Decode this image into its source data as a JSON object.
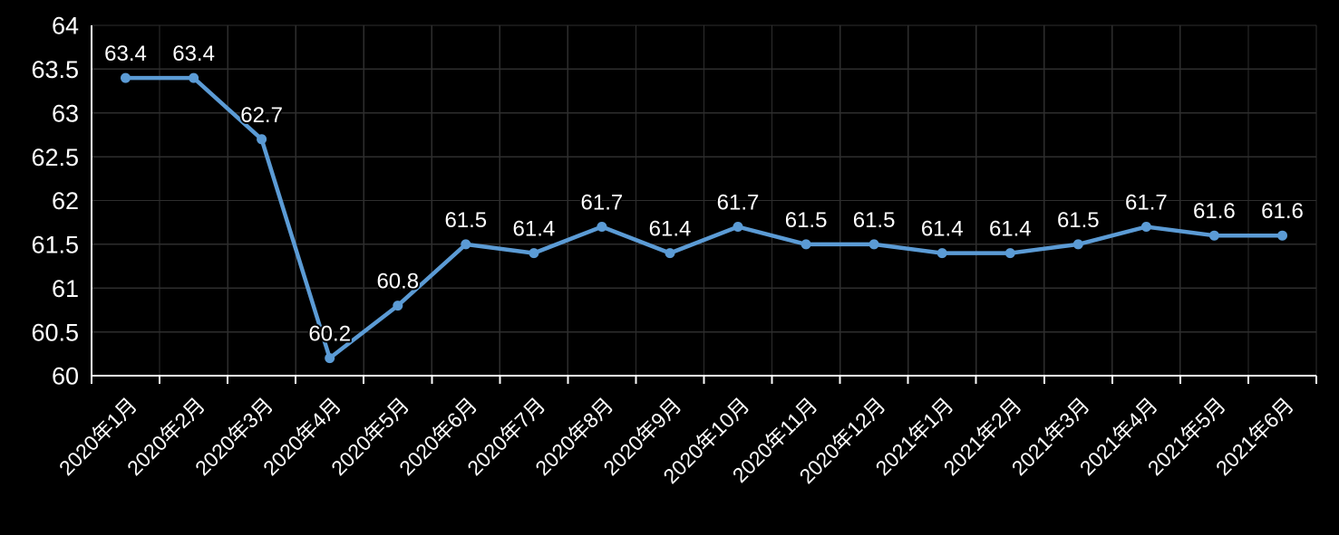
{
  "chart_data": {
    "type": "line",
    "title": "",
    "xlabel": "",
    "ylabel": "",
    "categories": [
      "2020年1月",
      "2020年2月",
      "2020年3月",
      "2020年4月",
      "2020年5月",
      "2020年6月",
      "2020年7月",
      "2020年8月",
      "2020年9月",
      "2020年10月",
      "2020年11月",
      "2020年12月",
      "2021年1月",
      "2021年2月",
      "2021年3月",
      "2021年4月",
      "2021年5月",
      "2021年6月"
    ],
    "series": [
      {
        "name": "series-1",
        "values": [
          63.4,
          63.4,
          62.7,
          60.2,
          60.8,
          61.5,
          61.4,
          61.7,
          61.4,
          61.7,
          61.5,
          61.5,
          61.4,
          61.4,
          61.5,
          61.7,
          61.6,
          61.6
        ],
        "data_labels": [
          "63.4",
          "63.4",
          "62.7",
          "60.2",
          "60.8",
          "61.5",
          "61.4",
          "61.7",
          "61.4",
          "61.7",
          "61.5",
          "61.5",
          "61.4",
          "61.4",
          "61.5",
          "61.7",
          "61.6",
          "61.6"
        ]
      }
    ],
    "ylim": [
      60,
      64
    ],
    "y_tick_step": 0.5,
    "y_tick_labels": [
      "64",
      "63.5",
      "63",
      "62.5",
      "62",
      "61.5",
      "61",
      "60.5",
      "60"
    ],
    "grid": true,
    "legend_position": "none",
    "x_label_rotation_deg": -45,
    "colors": {
      "background": "#000000",
      "line": "#5B9BD5",
      "marker": "#5B9BD5",
      "grid": "#2E2E2E",
      "axis": "#FFFFFF",
      "text": "#FFFFFF"
    }
  }
}
